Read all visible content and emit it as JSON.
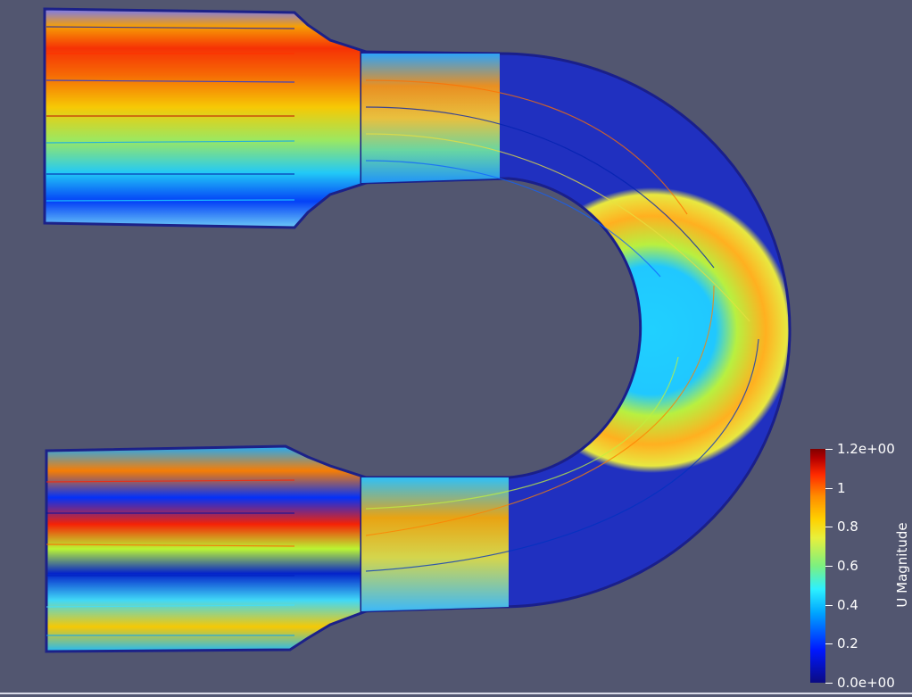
{
  "scene": {
    "background_color": "#525670",
    "description_colormap": "jet"
  },
  "legend": {
    "title": "U Magnitude",
    "labels": [
      "1.2e+00",
      "1",
      "0.8",
      "0.6",
      "0.4",
      "0.2",
      "0.0e+00"
    ],
    "values": [
      1.2,
      1.0,
      0.8,
      0.6,
      0.4,
      0.2,
      0.0
    ],
    "min": 0.0,
    "max": 1.2
  },
  "colors": {
    "pipe_outline": "#1a1f8a",
    "low": "#0b0b82",
    "mid": "#7cf07f",
    "high": "#b50000"
  }
}
